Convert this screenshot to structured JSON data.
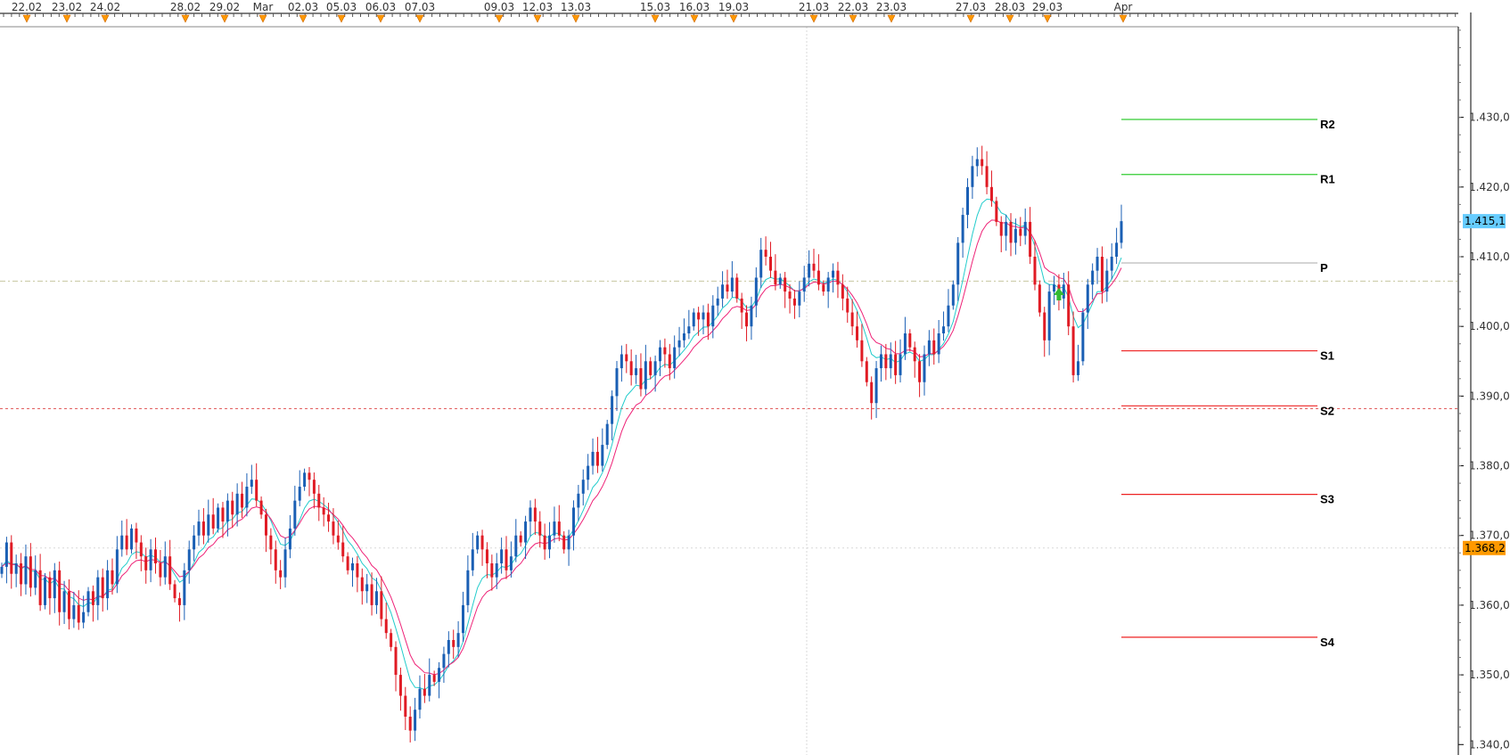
{
  "chart_data": {
    "type": "candlestick",
    "x_axis": {
      "date_labels": [
        "22.02",
        "23.02",
        "24.02",
        "28.02",
        "29.02",
        "Mar",
        "02.03",
        "05.03",
        "06.03",
        "07.03",
        "09.03",
        "12.03",
        "13.03",
        "15.03",
        "16.03",
        "19.03",
        "21.03",
        "22.03",
        "23.03",
        "27.03",
        "28.03",
        "29.03",
        "Apr"
      ]
    },
    "y_axis": {
      "range": [
        1.3385,
        1.443
      ],
      "tick_values": [
        1.43,
        1.42,
        1.41,
        1.4,
        1.39,
        1.38,
        1.37,
        1.36,
        1.35,
        1.34
      ],
      "tick_labels": [
        "1.430,0",
        "1.420,0",
        "1.410,0",
        "1.400,0",
        "1.390,0",
        "1.380,0",
        "1.370,0",
        "1.360,0",
        "1.350,0",
        "1.340,0"
      ]
    },
    "current_price": {
      "value": 1.4151,
      "label": "1.415,1",
      "color": "#66ccff"
    },
    "marker_price": {
      "value": 1.3682,
      "label": "1.368,2",
      "color": "#ff9900"
    },
    "horizontal_lines": [
      {
        "value": 1.4065,
        "style": "dash-dot",
        "color": "#c8c8a0"
      },
      {
        "value": 1.3882,
        "style": "dashed",
        "color": "#e05050"
      },
      {
        "value": 1.3682,
        "style": "dotted",
        "color": "#d8d8d8"
      }
    ],
    "pivot_levels": [
      {
        "name": "R2",
        "value": 1.4297,
        "color": "#33cc33"
      },
      {
        "name": "R1",
        "value": 1.4218,
        "color": "#33cc33"
      },
      {
        "name": "P",
        "value": 1.4091,
        "color": "#bbbbbb"
      },
      {
        "name": "S1",
        "value": 1.3965,
        "color": "#ee2222"
      },
      {
        "name": "S2",
        "value": 1.3886,
        "color": "#ee2222"
      },
      {
        "name": "S3",
        "value": 1.3759,
        "color": "#ee2222"
      },
      {
        "name": "S4",
        "value": 1.3554,
        "color": "#ee2222"
      }
    ],
    "moving_averages": [
      {
        "color": "#22cccc"
      },
      {
        "color": "#ee2277"
      }
    ],
    "candle_closes": [
      1.3655,
      1.369,
      1.3645,
      1.366,
      1.363,
      1.367,
      1.3625,
      1.365,
      1.36,
      1.364,
      1.361,
      1.365,
      1.359,
      1.362,
      1.358,
      1.36,
      1.3575,
      1.359,
      1.362,
      1.36,
      1.364,
      1.361,
      1.365,
      1.363,
      1.368,
      1.37,
      1.368,
      1.371,
      1.369,
      1.367,
      1.365,
      1.368,
      1.366,
      1.364,
      1.367,
      1.363,
      1.361,
      1.36,
      1.365,
      1.368,
      1.37,
      1.372,
      1.37,
      1.373,
      1.371,
      1.374,
      1.372,
      1.375,
      1.373,
      1.376,
      1.374,
      1.377,
      1.378,
      1.375,
      1.373,
      1.37,
      1.368,
      1.365,
      1.364,
      1.368,
      1.371,
      1.375,
      1.377,
      1.379,
      1.378,
      1.376,
      1.374,
      1.373,
      1.372,
      1.37,
      1.369,
      1.367,
      1.365,
      1.366,
      1.364,
      1.362,
      1.363,
      1.36,
      1.362,
      1.358,
      1.356,
      1.354,
      1.35,
      1.347,
      1.344,
      1.342,
      1.345,
      1.348,
      1.347,
      1.35,
      1.349,
      1.351,
      1.353,
      1.355,
      1.354,
      1.356,
      1.36,
      1.365,
      1.368,
      1.37,
      1.368,
      1.366,
      1.364,
      1.366,
      1.368,
      1.365,
      1.367,
      1.37,
      1.369,
      1.372,
      1.374,
      1.372,
      1.37,
      1.368,
      1.37,
      1.372,
      1.37,
      1.368,
      1.37,
      1.374,
      1.376,
      1.378,
      1.38,
      1.382,
      1.38,
      1.383,
      1.386,
      1.39,
      1.394,
      1.396,
      1.395,
      1.393,
      1.394,
      1.391,
      1.395,
      1.393,
      1.395,
      1.397,
      1.396,
      1.394,
      1.397,
      1.398,
      1.399,
      1.4,
      1.402,
      1.401,
      1.402,
      1.4,
      1.403,
      1.404,
      1.406,
      1.405,
      1.407,
      1.404,
      1.402,
      1.4,
      1.403,
      1.407,
      1.411,
      1.41,
      1.408,
      1.406,
      1.407,
      1.405,
      1.404,
      1.403,
      1.405,
      1.407,
      1.409,
      1.408,
      1.406,
      1.405,
      1.407,
      1.408,
      1.406,
      1.404,
      1.402,
      1.4,
      1.398,
      1.395,
      1.392,
      1.389,
      1.394,
      1.396,
      1.394,
      1.396,
      1.393,
      1.396,
      1.399,
      1.397,
      1.395,
      1.392,
      1.396,
      1.398,
      1.396,
      1.399,
      1.4,
      1.403,
      1.406,
      1.412,
      1.416,
      1.42,
      1.423,
      1.424,
      1.423,
      1.42,
      1.418,
      1.415,
      1.413,
      1.415,
      1.412,
      1.414,
      1.413,
      1.415,
      1.41,
      1.406,
      1.402,
      1.398,
      1.405,
      1.406,
      1.404,
      1.406,
      1.4,
      1.393,
      1.395,
      1.402,
      1.406,
      1.408,
      1.41,
      1.405,
      1.408,
      1.41,
      1.412,
      1.4151
    ],
    "signal_arrow": {
      "color": "#33bb33",
      "direction": "up"
    }
  }
}
